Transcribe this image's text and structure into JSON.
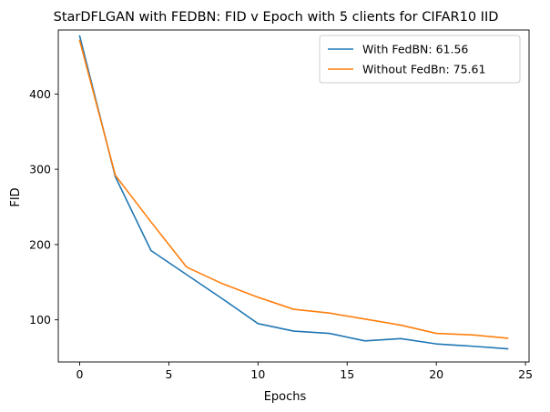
{
  "chart_data": {
    "type": "line",
    "title": "StarDFLGAN with FEDBN: FID v Epoch with 5 clients for CIFAR10 IID",
    "xlabel": "Epochs",
    "ylabel": "FID",
    "xlim": [
      -1.2,
      25.2
    ],
    "ylim": [
      44,
      485
    ],
    "xticks": [
      0,
      5,
      10,
      15,
      20,
      25
    ],
    "yticks": [
      100,
      200,
      300,
      400
    ],
    "grid": false,
    "legend_position": "top-right",
    "series": [
      {
        "name": "With FedBN: 61.56",
        "color": "#1f77b4",
        "x": [
          0,
          2,
          4,
          6,
          8,
          10,
          12,
          14,
          16,
          18,
          20,
          22,
          24
        ],
        "y": [
          477,
          290,
          192,
          160,
          128,
          95,
          85,
          82,
          72,
          75,
          68,
          65,
          61.56
        ]
      },
      {
        "name": "Without FedBn: 75.61",
        "color": "#ff7f0e",
        "x": [
          0,
          2,
          4,
          6,
          8,
          10,
          12,
          14,
          16,
          18,
          20,
          22,
          24
        ],
        "y": [
          471,
          292,
          230,
          170,
          148,
          130,
          114,
          109,
          101,
          93,
          82,
          80,
          75.61
        ]
      }
    ]
  }
}
